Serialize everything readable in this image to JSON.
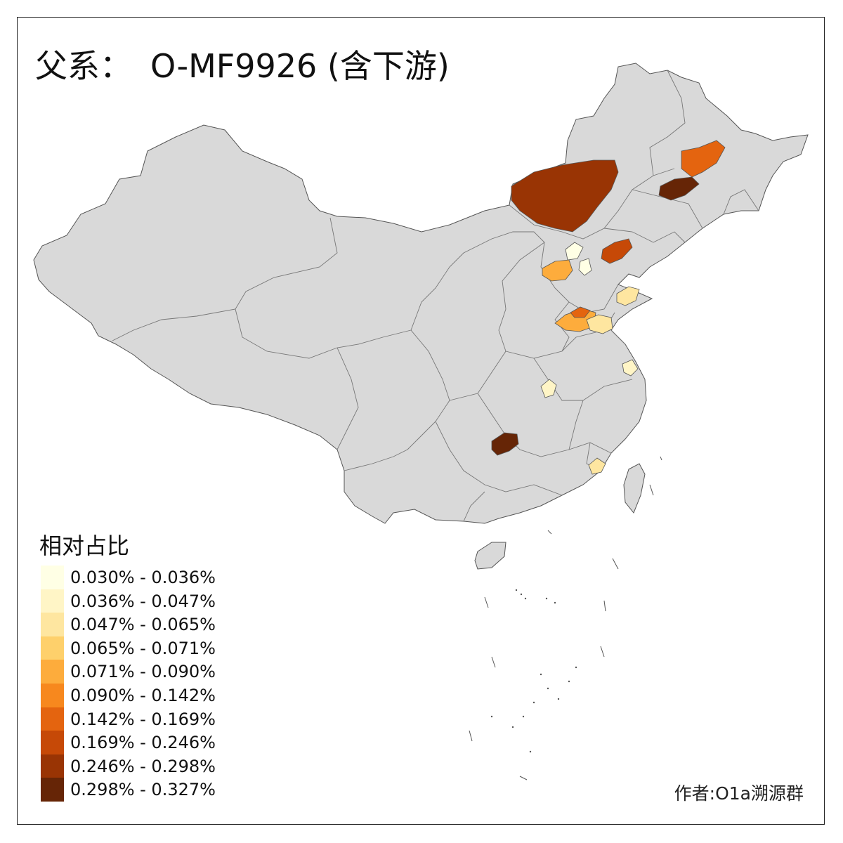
{
  "title": {
    "prefix": "父系：",
    "haplogroup": "O-MF9926 (含下游)"
  },
  "legend": {
    "title": "相对占比",
    "items": [
      {
        "label": "0.030% - 0.036%",
        "color": "#FFFFE5"
      },
      {
        "label": "0.036% - 0.047%",
        "color": "#FFF5C6"
      },
      {
        "label": "0.047% - 0.065%",
        "color": "#FEE6A0"
      },
      {
        "label": "0.065% - 0.071%",
        "color": "#FED06B"
      },
      {
        "label": "0.071% - 0.090%",
        "color": "#FDAC3C"
      },
      {
        "label": "0.090% - 0.142%",
        "color": "#F7881E"
      },
      {
        "label": "0.142% - 0.169%",
        "color": "#E4640F"
      },
      {
        "label": "0.169% - 0.246%",
        "color": "#C64907"
      },
      {
        "label": "0.246% - 0.298%",
        "color": "#993404"
      },
      {
        "label": "0.298% - 0.327%",
        "color": "#662506"
      }
    ]
  },
  "map": {
    "base_color": "#D9D9D9",
    "border_color": "#6b6b6b"
  },
  "credit": "作者:O1a溯源群"
}
